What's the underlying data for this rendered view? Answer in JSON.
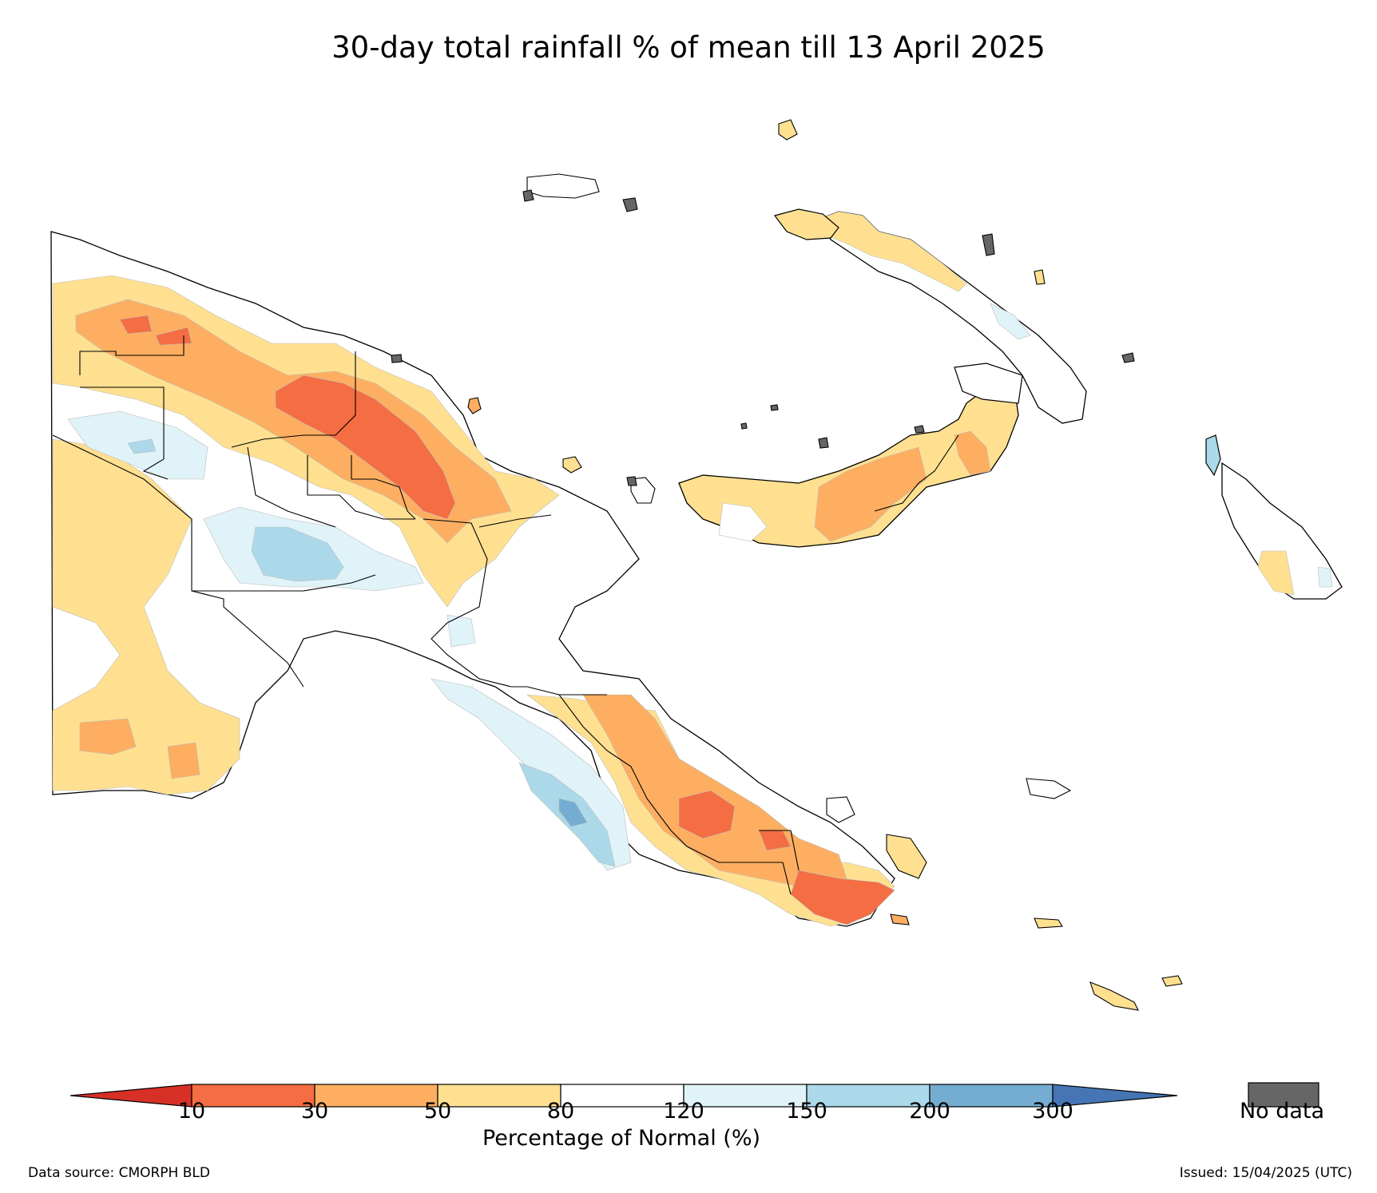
{
  "title": "30-day total rainfall % of mean till 13 April 2025",
  "colorbar": {
    "title": "Percentage of Normal (%)",
    "ticks": [
      "10",
      "30",
      "50",
      "80",
      "120",
      "150",
      "200",
      "300"
    ],
    "bins": [
      {
        "range": "<10",
        "color": "#d73027"
      },
      {
        "range": "10-30",
        "color": "#f46d43"
      },
      {
        "range": "30-50",
        "color": "#fdae61"
      },
      {
        "range": "50-80",
        "color": "#fee090"
      },
      {
        "range": "80-120",
        "color": "#ffffff"
      },
      {
        "range": "120-150",
        "color": "#e0f3f8"
      },
      {
        "range": "150-200",
        "color": "#abd9e9"
      },
      {
        "range": "200-300",
        "color": "#74add1"
      },
      {
        "range": ">300",
        "color": "#4575b4"
      }
    ],
    "extend": "both"
  },
  "no_data": {
    "label": "No data",
    "color": "#666666"
  },
  "footer": {
    "source": "Data source: CMORPH BLD",
    "issued": "Issued: 15/04/2025 (UTC)"
  },
  "map": {
    "region": "Papua New Guinea",
    "regional_pattern": [
      {
        "area": "Western Province (south-west)",
        "category": "50-80"
      },
      {
        "area": "Sepik / north-west",
        "category": "10-50"
      },
      {
        "area": "Madang / Morobe north coast",
        "category": "10-30"
      },
      {
        "area": "Southern Highlands",
        "category": "120-200"
      },
      {
        "area": "Gulf / Central coast",
        "category": "120-300"
      },
      {
        "area": "Oro / Milne Bay",
        "category": "10-50"
      },
      {
        "area": "New Britain",
        "category": "30-80"
      },
      {
        "area": "New Ireland",
        "category": "50-150"
      },
      {
        "area": "Bougainville",
        "category": "50-150"
      },
      {
        "area": "Manus",
        "category": "50-80"
      }
    ]
  }
}
